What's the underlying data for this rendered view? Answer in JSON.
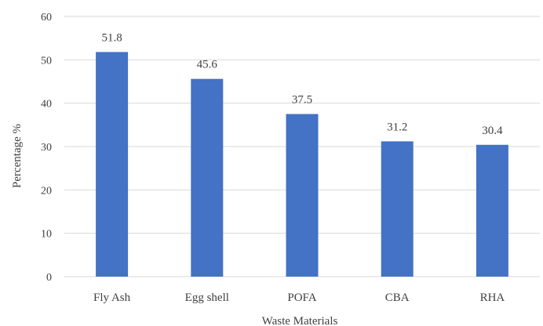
{
  "chart_data": {
    "type": "bar",
    "categories": [
      "Fly Ash",
      "Egg shell",
      "POFA",
      "CBA",
      "RHA"
    ],
    "values": [
      51.8,
      45.6,
      37.5,
      31.2,
      30.4
    ],
    "value_labels": [
      "51.8",
      "45.6",
      "37.5",
      "31.2",
      "30.4"
    ],
    "title": "",
    "xlabel": "Waste Materials",
    "ylabel": "Percentage %",
    "ylim": [
      0,
      60
    ],
    "yticks": [
      "0",
      "10",
      "20",
      "30",
      "40",
      "50",
      "60"
    ],
    "grid": true,
    "legend": "none",
    "bar_color": "#4472c4",
    "grid_color": "#d9d9d9",
    "text_color": "#404040"
  }
}
